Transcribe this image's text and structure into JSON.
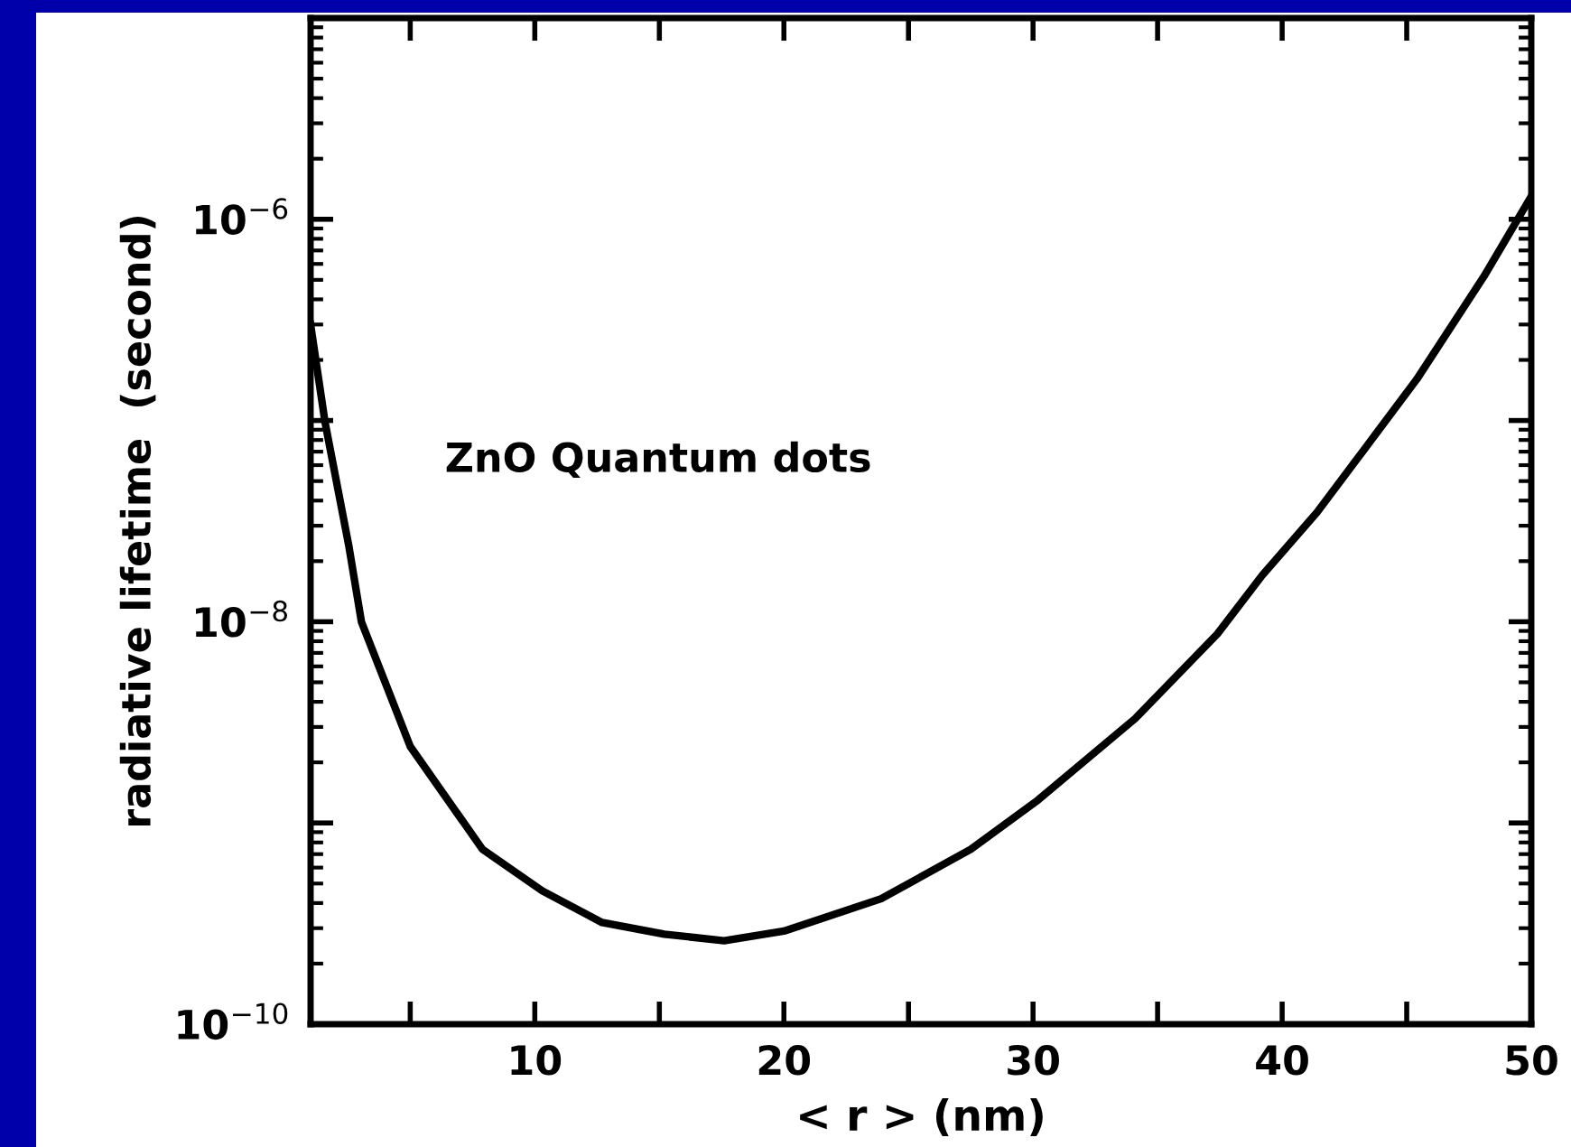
{
  "chart_data": {
    "type": "line",
    "xlabel": "< r > (nm)",
    "ylabel": "radiative lifetime  (second)",
    "annotations": [
      "ZnO Quantum dots"
    ],
    "x": [
      1.0,
      1.58,
      2.53,
      3.04,
      5.0,
      7.9,
      10.3,
      12.7,
      15.2,
      17.6,
      20.0,
      23.9,
      27.5,
      30.2,
      34.1,
      37.4,
      39.2,
      41.4,
      43.3,
      45.4,
      48.1,
      50
    ],
    "series": [
      {
        "color": "#000000",
        "values": [
          3e-07,
          9.8e-08,
          2.4e-08,
          1e-08,
          2.4e-09,
          7.4e-10,
          4.6e-10,
          3.2e-10,
          2.8e-10,
          2.6e-10,
          2.9e-10,
          4.2e-10,
          7.4e-10,
          1.3e-09,
          3.3e-09,
          8.7e-09,
          1.7e-08,
          3.5e-08,
          7.2e-08,
          1.6e-07,
          5.2e-07,
          1.3e-06
        ]
      }
    ],
    "log": "y",
    "xlim": [
      1,
      50
    ],
    "ylim": [
      1e-10,
      1e-05
    ],
    "xticks": [
      {
        "value": 5,
        "label": null
      },
      10,
      {
        "value": 15,
        "label": null
      },
      20,
      {
        "value": 25,
        "label": null
      },
      30,
      {
        "value": 35,
        "label": null
      },
      40,
      {
        "value": 45,
        "label": null
      },
      50
    ],
    "yticks": [
      {
        "value": 1e-10,
        "label": "10$^{−10}$"
      },
      {
        "value": 1e-09,
        "label": null
      },
      {
        "value": 1e-08,
        "label": "10$^{−8}$"
      },
      {
        "value": 1e-07,
        "label": null
      },
      {
        "value": 1e-06,
        "label": "10$^{−6}$"
      },
      {
        "value": 1e-05,
        "label": null
      }
    ],
    "grid": false,
    "marker": "none",
    "line_style": "solid"
  }
}
